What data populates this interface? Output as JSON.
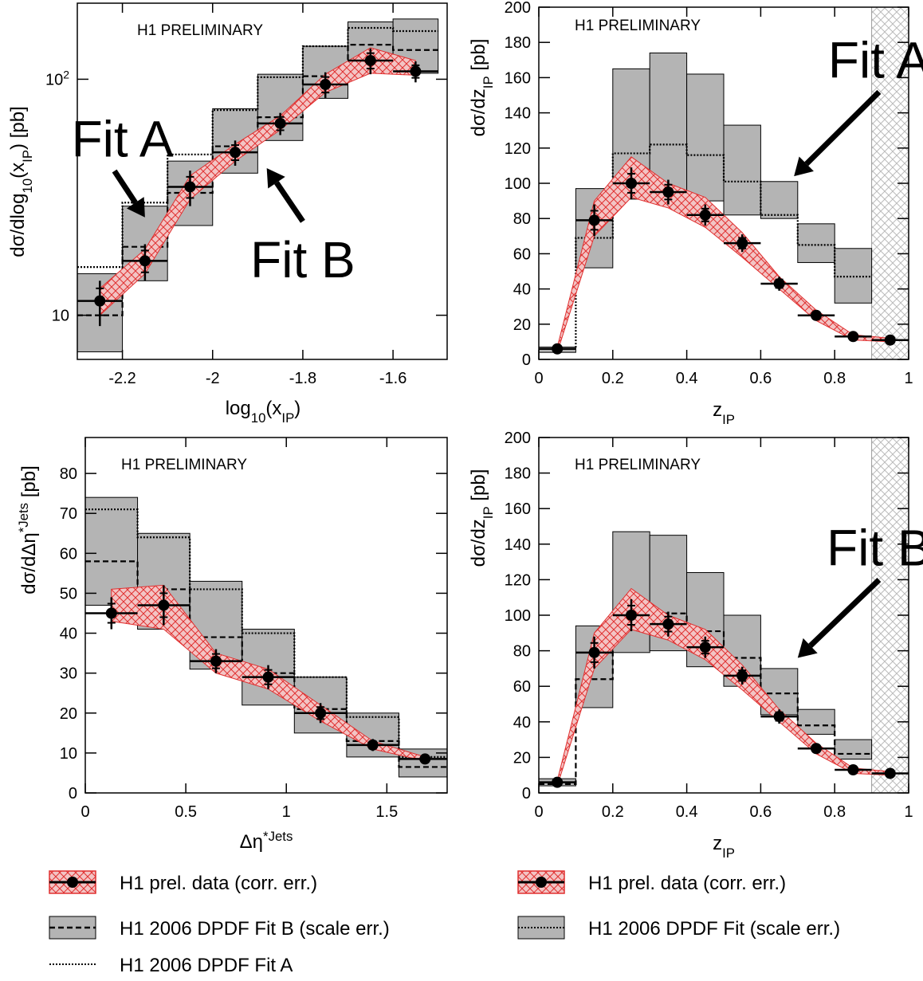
{
  "colors": {
    "band_fill": "#f3c4c4",
    "band_hatch": "#e03030",
    "scale_fill": "#b4b4b4",
    "points": "#000000",
    "hatched_region": "#cccccc"
  },
  "legend": {
    "left": [
      {
        "label": "H1 prel. data (corr. err.)",
        "key": "data"
      },
      {
        "label": "H1 2006 DPDF Fit B (scale err.)",
        "key": "scale-dashed"
      },
      {
        "label": "H1 2006 DPDF Fit A",
        "key": "dotted"
      }
    ],
    "right": [
      {
        "label": "H1 prel. data (corr. err.)",
        "key": "data"
      },
      {
        "label": "H1 2006 DPDF Fit (scale err.)",
        "key": "scale-dotted"
      }
    ]
  },
  "chart_data": [
    {
      "id": "xip",
      "type": "bar",
      "preliminary_label": "H1 PRELIMINARY",
      "xlabel": "log10(xIP)",
      "ylabel": "dσ/dlog10(xIP)  [pb]",
      "log_y": true,
      "xlim": [
        -2.3,
        -1.48
      ],
      "ylim": [
        6.5,
        210
      ],
      "x_ticks": [
        -2.2,
        -2,
        -1.8,
        -1.6
      ],
      "x_tick_labels": [
        "-2.2",
        "-2",
        "-1.8",
        "-1.6"
      ],
      "y_ticks": [
        10,
        100
      ],
      "y_tick_labels": [
        "10",
        "10²"
      ],
      "bins": [
        [
          -2.3,
          -2.2
        ],
        [
          -2.2,
          -2.1
        ],
        [
          -2.1,
          -2.0
        ],
        [
          -2.0,
          -1.9
        ],
        [
          -1.9,
          -1.8
        ],
        [
          -1.8,
          -1.7
        ],
        [
          -1.7,
          -1.6
        ],
        [
          -1.6,
          -1.5
        ]
      ],
      "data": {
        "x": [
          -2.25,
          -2.15,
          -2.05,
          -1.95,
          -1.85,
          -1.75,
          -1.65,
          -1.55
        ],
        "y": [
          11.5,
          17,
          35,
          49,
          65,
          95,
          120,
          108
        ],
        "err": [
          2.5,
          3,
          6,
          6,
          7,
          12,
          15,
          11
        ]
      },
      "band": {
        "upper": [
          13,
          19,
          39,
          53,
          70,
          105,
          136,
          120
        ],
        "lower": [
          10,
          15,
          31,
          45,
          61,
          88,
          106,
          104
        ]
      },
      "scale_band": {
        "upper": [
          15,
          29,
          45,
          75,
          105,
          138,
          175,
          180
        ],
        "lower": [
          7,
          14,
          24,
          40,
          55,
          83,
          110,
          106
        ]
      },
      "fit_dashed": [
        10,
        19.5,
        33,
        52,
        69,
        103,
        140,
        133
      ],
      "fit_dotted": [
        16,
        30,
        48,
        74,
        102,
        138,
        165,
        160
      ],
      "annotations": [
        {
          "text": "Fit A",
          "x": -2.2,
          "y": 47,
          "arrow_to": [
            -2.15,
            26
          ]
        },
        {
          "text": "Fit B",
          "x": -1.8,
          "y": 14.5,
          "arrow_to": [
            -1.88,
            42
          ]
        }
      ]
    },
    {
      "id": "zip-a",
      "type": "bar",
      "preliminary_label": "H1 PRELIMINARY",
      "xlabel": "zIP",
      "ylabel": "dσ/dzIP  [pb]",
      "log_y": false,
      "xlim": [
        0,
        1
      ],
      "ylim": [
        0,
        200
      ],
      "x_ticks": [
        0,
        0.2,
        0.4,
        0.6,
        0.8,
        1
      ],
      "x_tick_labels": [
        "0",
        "0.2",
        "0.4",
        "0.6",
        "0.8",
        "1"
      ],
      "y_ticks": [
        0,
        20,
        40,
        60,
        80,
        100,
        120,
        140,
        160,
        180,
        200
      ],
      "y_tick_labels": [
        "0",
        "20",
        "40",
        "60",
        "80",
        "100",
        "120",
        "140",
        "160",
        "180",
        "200"
      ],
      "hatched_region": [
        0.9,
        1.0
      ],
      "bins": [
        [
          0,
          0.1
        ],
        [
          0.1,
          0.2
        ],
        [
          0.2,
          0.3
        ],
        [
          0.3,
          0.4
        ],
        [
          0.4,
          0.5
        ],
        [
          0.5,
          0.6
        ],
        [
          0.6,
          0.7
        ],
        [
          0.7,
          0.8
        ],
        [
          0.8,
          0.9
        ]
      ],
      "data": {
        "x": [
          0.05,
          0.15,
          0.25,
          0.35,
          0.45,
          0.55,
          0.65,
          0.75,
          0.85,
          0.95
        ],
        "y": [
          6,
          79,
          100,
          95,
          82,
          66,
          43,
          25,
          13,
          11
        ],
        "err": [
          2,
          9,
          9,
          7,
          6,
          5,
          4,
          3,
          2,
          3
        ]
      },
      "band_x": [
        0.05,
        0.15,
        0.25,
        0.35,
        0.45,
        0.55,
        0.65,
        0.75,
        0.85,
        0.95
      ],
      "band": {
        "upper": [
          7,
          90,
          115,
          100,
          92,
          72,
          47,
          28,
          14,
          12
        ],
        "lower": [
          4,
          70,
          92,
          86,
          75,
          58,
          40,
          22,
          11,
          10
        ]
      },
      "scale_band": {
        "upper": [
          7,
          97,
          165,
          174,
          162,
          133,
          101,
          77,
          63
        ],
        "lower": [
          4,
          52,
          91,
          94,
          90,
          82,
          80,
          55,
          32
        ]
      },
      "fit_dotted": [
        6,
        69,
        117,
        122,
        116,
        101,
        82,
        65,
        47
      ],
      "annotations": [
        {
          "text": "Fit A",
          "x": 0.92,
          "y": 160,
          "arrow_to": [
            0.69,
            104
          ]
        }
      ]
    },
    {
      "id": "deta",
      "type": "bar",
      "preliminary_label": "H1 PRELIMINARY",
      "xlabel": "Δη* Jets",
      "ylabel": "dσ/dΔη* Jets  [pb]",
      "log_y": false,
      "xlim": [
        0,
        1.8
      ],
      "ylim": [
        0,
        89
      ],
      "x_ticks": [
        0,
        0.5,
        1,
        1.5
      ],
      "x_tick_labels": [
        "0",
        "0.5",
        "1",
        "1.5"
      ],
      "y_ticks": [
        0,
        10,
        20,
        30,
        40,
        50,
        60,
        70,
        80
      ],
      "y_tick_labels": [
        "0",
        "10",
        "20",
        "30",
        "40",
        "50",
        "60",
        "70",
        "80"
      ],
      "bins": [
        [
          0,
          0.26
        ],
        [
          0.26,
          0.52
        ],
        [
          0.52,
          0.78
        ],
        [
          0.78,
          1.04
        ],
        [
          1.04,
          1.3
        ],
        [
          1.3,
          1.56
        ],
        [
          1.56,
          1.8
        ]
      ],
      "data": {
        "x": [
          0.13,
          0.39,
          0.65,
          0.91,
          1.17,
          1.43,
          1.69
        ],
        "y": [
          45,
          47,
          33,
          29,
          20,
          12,
          8.5
        ],
        "err": [
          4,
          5,
          3,
          3,
          2.5,
          1.5,
          1
        ]
      },
      "band_x": [
        0.13,
        0.39,
        0.65,
        0.91,
        1.17,
        1.43,
        1.69
      ],
      "band": {
        "upper": [
          51,
          52,
          35,
          31,
          22,
          13,
          9
        ],
        "lower": [
          43,
          41,
          30,
          26,
          18,
          11,
          8
        ]
      },
      "scale_band": {
        "upper": [
          74,
          65,
          53,
          41,
          29,
          20,
          11
        ],
        "lower": [
          47,
          41,
          31,
          22,
          15,
          9,
          4
        ]
      },
      "fit_dashed": [
        58,
        51,
        39,
        30,
        21,
        13,
        6.5
      ],
      "fit_dotted": [
        71,
        64,
        51,
        40,
        29,
        19,
        9
      ]
    },
    {
      "id": "zip-b",
      "type": "bar",
      "preliminary_label": "H1 PRELIMINARY",
      "xlabel": "zIP",
      "ylabel": "dσ/dzIP  [pb]",
      "log_y": false,
      "xlim": [
        0,
        1
      ],
      "ylim": [
        0,
        200
      ],
      "x_ticks": [
        0,
        0.2,
        0.4,
        0.6,
        0.8,
        1
      ],
      "x_tick_labels": [
        "0",
        "0.2",
        "0.4",
        "0.6",
        "0.8",
        "1"
      ],
      "y_ticks": [
        0,
        20,
        40,
        60,
        80,
        100,
        120,
        140,
        160,
        180,
        200
      ],
      "y_tick_labels": [
        "0",
        "20",
        "40",
        "60",
        "80",
        "100",
        "120",
        "140",
        "160",
        "180",
        "200"
      ],
      "hatched_region": [
        0.9,
        1.0
      ],
      "bins": [
        [
          0,
          0.1
        ],
        [
          0.1,
          0.2
        ],
        [
          0.2,
          0.3
        ],
        [
          0.3,
          0.4
        ],
        [
          0.4,
          0.5
        ],
        [
          0.5,
          0.6
        ],
        [
          0.6,
          0.7
        ],
        [
          0.7,
          0.8
        ],
        [
          0.8,
          0.9
        ]
      ],
      "data": {
        "x": [
          0.05,
          0.15,
          0.25,
          0.35,
          0.45,
          0.55,
          0.65,
          0.75,
          0.85,
          0.95
        ],
        "y": [
          6,
          79,
          100,
          95,
          82,
          66,
          43,
          25,
          13,
          11
        ],
        "err": [
          2,
          9,
          9,
          7,
          6,
          5,
          4,
          3,
          2,
          3
        ]
      },
      "band_x": [
        0.05,
        0.15,
        0.25,
        0.35,
        0.45,
        0.55,
        0.65,
        0.75,
        0.85,
        0.95
      ],
      "band": {
        "upper": [
          7,
          90,
          115,
          100,
          92,
          72,
          47,
          28,
          14,
          12
        ],
        "lower": [
          4,
          70,
          92,
          86,
          75,
          58,
          40,
          22,
          11,
          10
        ]
      },
      "scale_band": {
        "upper": [
          8,
          94,
          147,
          145,
          124,
          100,
          70,
          47,
          30
        ],
        "lower": [
          4,
          48,
          79,
          80,
          71,
          60,
          44,
          33,
          19
        ]
      },
      "fit_dashed": [
        5,
        64,
        102,
        101,
        91,
        76,
        56,
        38,
        22
      ],
      "annotations": [
        {
          "text": "Fit B",
          "x": 0.92,
          "y": 128,
          "arrow_to": [
            0.7,
            76
          ]
        }
      ]
    }
  ]
}
